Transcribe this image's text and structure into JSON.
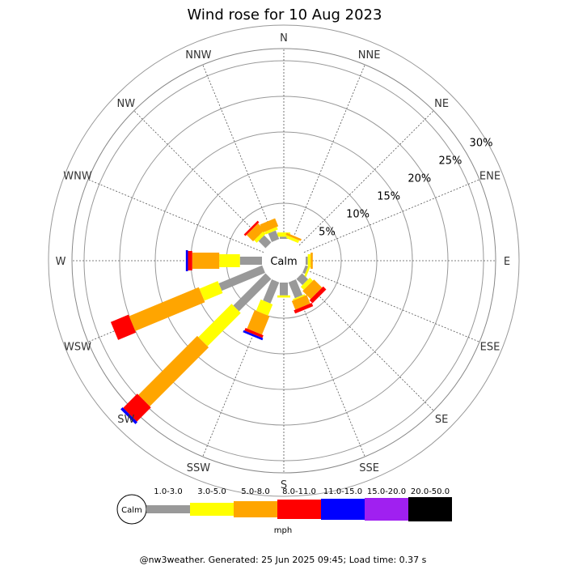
{
  "chart_data": {
    "type": "wind-rose",
    "title": "Wind rose for 10 Aug 2023",
    "directions": [
      "N",
      "NNE",
      "NE",
      "ENE",
      "E",
      "ESE",
      "SE",
      "SSE",
      "S",
      "SSW",
      "SW",
      "WSW",
      "W",
      "WNW",
      "NW",
      "NNW"
    ],
    "ring_labels": [
      "5%",
      "10%",
      "15%",
      "20%",
      "25%",
      "30%"
    ],
    "ring_values": [
      5,
      10,
      15,
      20,
      25,
      30
    ],
    "calm_label": "Calm",
    "speed_unit": "mph",
    "bins": [
      {
        "label": "1.0-3.0",
        "color": "#999999"
      },
      {
        "label": "3.0-5.0",
        "color": "#ffff00"
      },
      {
        "label": "5.0-8.0",
        "color": "#ffa500"
      },
      {
        "label": "8.0-11.0",
        "color": "#ff0000"
      },
      {
        "label": "11.0-15.0",
        "color": "#0000ff"
      },
      {
        "label": "15.0-20.0",
        "color": "#a020f0"
      },
      {
        "label": "20.0-50.0",
        "color": "#000000"
      }
    ],
    "series": {
      "N": [
        0.3,
        0.6,
        0.0,
        0.0,
        0.0,
        0.0,
        0.0
      ],
      "NNE": [
        0.0,
        0.4,
        0.3,
        0.0,
        0.0,
        0.0,
        0.0
      ],
      "NE": [
        0.0,
        0.0,
        0.0,
        0.0,
        0.0,
        0.0,
        0.0
      ],
      "ENE": [
        0.0,
        0.0,
        0.0,
        0.0,
        0.0,
        0.0,
        0.0
      ],
      "E": [
        0.3,
        0.4,
        0.3,
        0.0,
        0.0,
        0.0,
        0.0
      ],
      "ESE": [
        0.4,
        0.3,
        0.0,
        0.0,
        0.0,
        0.0,
        0.0
      ],
      "SE": [
        1.2,
        0.6,
        1.6,
        0.6,
        0.0,
        0.0,
        0.0
      ],
      "SSE": [
        2.4,
        0.2,
        1.3,
        0.5,
        0.0,
        0.0,
        0.0
      ],
      "S": [
        1.8,
        0.3,
        0.0,
        0.0,
        0.0,
        0.0,
        0.0
      ],
      "SSW": [
        3.2,
        1.7,
        2.8,
        0.4,
        0.3,
        0.0,
        0.0
      ],
      "SW": [
        6.4,
        6.6,
        11.7,
        2.8,
        0.4,
        0.0,
        0.0
      ],
      "WSW": [
        6.6,
        2.8,
        10.6,
        2.7,
        0.0,
        0.0,
        0.0
      ],
      "W": [
        3.1,
        2.9,
        3.8,
        0.6,
        0.3,
        0.0,
        0.0
      ],
      "WNW": [
        0.0,
        0.0,
        0.0,
        0.0,
        0.0,
        0.0,
        0.0
      ],
      "NW": [
        1.4,
        0.5,
        1.3,
        0.3,
        0.0,
        0.0,
        0.0
      ],
      "NNW": [
        1.3,
        0.4,
        1.2,
        0.0,
        0.0,
        0.0,
        0.0
      ]
    }
  },
  "footer": "@nw3weather. Generated: 25 Jun 2025 09:45; Load time: 0.37 s"
}
